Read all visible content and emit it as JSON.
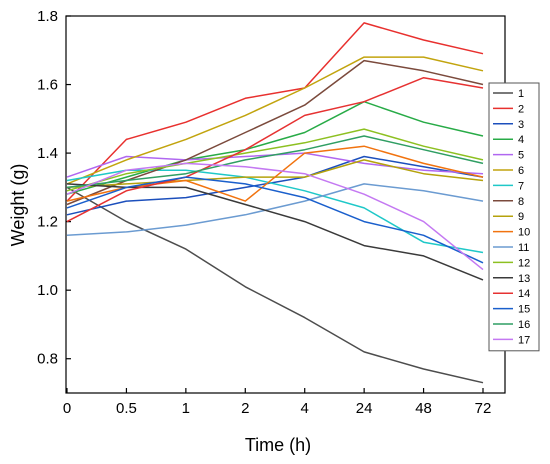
{
  "chart_data": {
    "type": "line",
    "title": "",
    "xlabel": "Time (h)",
    "ylabel": "Weight (g)",
    "categories": [
      "0",
      "0.5",
      "1",
      "2",
      "4",
      "24",
      "48",
      "72"
    ],
    "ylim": [
      0.7,
      1.8
    ],
    "yticks": [
      "0.8",
      "1.0",
      "1.2",
      "1.4",
      "1.6",
      "1.8"
    ],
    "grid": false,
    "legend": "right",
    "series": [
      {
        "name": "1",
        "color": "#4d4d4d",
        "values": [
          1.3,
          1.2,
          1.12,
          1.01,
          0.92,
          0.82,
          0.77,
          0.73
        ]
      },
      {
        "name": "2",
        "color": "#e8302e",
        "values": [
          1.26,
          1.44,
          1.49,
          1.56,
          1.59,
          1.78,
          1.73,
          1.69
        ]
      },
      {
        "name": "3",
        "color": "#1c4fbc",
        "values": [
          1.22,
          1.26,
          1.27,
          1.3,
          1.33,
          1.39,
          1.36,
          1.33
        ]
      },
      {
        "name": "4",
        "color": "#28ab47",
        "values": [
          1.28,
          1.33,
          1.38,
          1.41,
          1.46,
          1.55,
          1.49,
          1.45
        ]
      },
      {
        "name": "5",
        "color": "#b067f0",
        "values": [
          1.33,
          1.39,
          1.38,
          1.39,
          1.4,
          1.37,
          1.35,
          1.34
        ]
      },
      {
        "name": "6",
        "color": "#c2a40e",
        "values": [
          1.31,
          1.38,
          1.44,
          1.51,
          1.59,
          1.68,
          1.68,
          1.64
        ]
      },
      {
        "name": "7",
        "color": "#1fc8c8",
        "values": [
          1.32,
          1.35,
          1.35,
          1.33,
          1.29,
          1.24,
          1.14,
          1.11
        ]
      },
      {
        "name": "8",
        "color": "#7b4a3c",
        "values": [
          1.25,
          1.32,
          1.38,
          1.46,
          1.54,
          1.67,
          1.64,
          1.6
        ]
      },
      {
        "name": "9",
        "color": "#b5a20c",
        "values": [
          1.3,
          1.31,
          1.32,
          1.33,
          1.33,
          1.38,
          1.34,
          1.32
        ]
      },
      {
        "name": "10",
        "color": "#f1730f",
        "values": [
          1.26,
          1.3,
          1.32,
          1.26,
          1.4,
          1.42,
          1.37,
          1.33
        ]
      },
      {
        "name": "11",
        "color": "#6b9bd1",
        "values": [
          1.16,
          1.17,
          1.19,
          1.22,
          1.26,
          1.31,
          1.29,
          1.26
        ]
      },
      {
        "name": "12",
        "color": "#8dc021",
        "values": [
          1.29,
          1.34,
          1.37,
          1.4,
          1.43,
          1.47,
          1.42,
          1.38
        ]
      },
      {
        "name": "13",
        "color": "#3a3a3a",
        "values": [
          1.31,
          1.3,
          1.3,
          1.25,
          1.2,
          1.13,
          1.1,
          1.03
        ]
      },
      {
        "name": "14",
        "color": "#e63232",
        "values": [
          1.2,
          1.29,
          1.33,
          1.41,
          1.51,
          1.55,
          1.62,
          1.59
        ]
      },
      {
        "name": "15",
        "color": "#1a5fcc",
        "values": [
          1.24,
          1.3,
          1.33,
          1.31,
          1.27,
          1.2,
          1.16,
          1.08
        ]
      },
      {
        "name": "16",
        "color": "#2f9e63",
        "values": [
          1.3,
          1.32,
          1.34,
          1.38,
          1.41,
          1.45,
          1.41,
          1.37
        ]
      },
      {
        "name": "17",
        "color": "#c479f2",
        "values": [
          1.28,
          1.35,
          1.37,
          1.36,
          1.34,
          1.28,
          1.2,
          1.06
        ]
      }
    ]
  }
}
